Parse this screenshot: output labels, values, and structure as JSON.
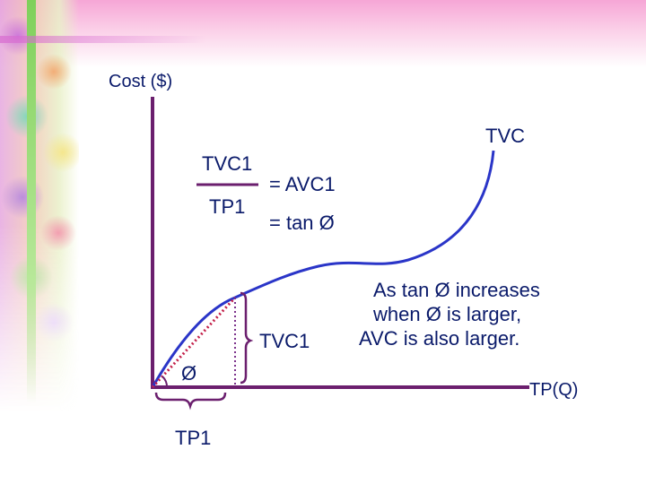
{
  "axes": {
    "y_label": "Cost ($)",
    "x_label": "TP(Q)"
  },
  "curve_label": "TVC",
  "formula": {
    "numerator": "TVC1",
    "denominator": "TP1",
    "eq_avc": "= AVC1",
    "eq_tan": "= tan Ø"
  },
  "annotations": {
    "angle": "Ø",
    "vertical_brace_label": "TVC1",
    "horizontal_brace_label": "TP1",
    "note_lines": [
      "As tan Ø increases",
      "when Ø is larger,",
      "AVC is also larger."
    ]
  },
  "colors": {
    "text": "#0a1a6a",
    "axis": "#6b1f6e",
    "curve": "#2a35c8",
    "ray": "#c3204a",
    "brace": "#6b1f6e"
  }
}
